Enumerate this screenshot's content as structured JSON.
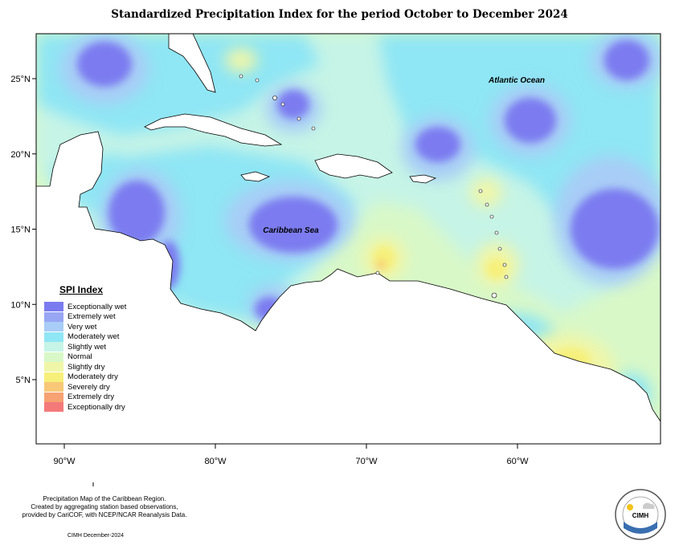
{
  "title": "Standardized Precipitation Index for the period October to December 2024",
  "ocean_labels": {
    "atlantic": "Atlantic Ocean",
    "caribbean": "Caribbean Sea"
  },
  "axes": {
    "lat_ticks": [
      {
        "label": "25°N",
        "value": 25
      },
      {
        "label": "20°N",
        "value": 20
      },
      {
        "label": "15°N",
        "value": 15
      },
      {
        "label": "10°N",
        "value": 10
      },
      {
        "label": "5°N",
        "value": 5
      }
    ],
    "lon_ticks": [
      {
        "label": "90°W",
        "value": -90
      },
      {
        "label": "80°W",
        "value": -80
      },
      {
        "label": "70°W",
        "value": -70
      },
      {
        "label": "60°W",
        "value": -60
      }
    ]
  },
  "legend": {
    "title": "SPI Index",
    "items": [
      {
        "label": "Exceptionally wet",
        "color": "#7b7bf0"
      },
      {
        "label": "Extremely wet",
        "color": "#98a6f4"
      },
      {
        "label": "Very wet",
        "color": "#a8cdf6"
      },
      {
        "label": "Moderately wet",
        "color": "#8fe6f4"
      },
      {
        "label": "Slightly wet",
        "color": "#c6f4e6"
      },
      {
        "label": "Normal",
        "color": "#d8f8c8"
      },
      {
        "label": "Slightly dry",
        "color": "#f0f6a8"
      },
      {
        "label": "Moderately dry",
        "color": "#f6f07a"
      },
      {
        "label": "Severely dry",
        "color": "#f8c878"
      },
      {
        "label": "Extremely dry",
        "color": "#f6a272"
      },
      {
        "label": "Exceptionally dry",
        "color": "#f47a7a"
      }
    ]
  },
  "footer": {
    "line1": "Precipitation Map of the Caribbean Region.",
    "line2": "Created by aggregating station based observations,",
    "line3": "provided by CariCOF, with NCEP/NCAR Reanalysis Data.",
    "date": "CIMH December-2024"
  },
  "logo": {
    "text": "CIMH"
  }
}
